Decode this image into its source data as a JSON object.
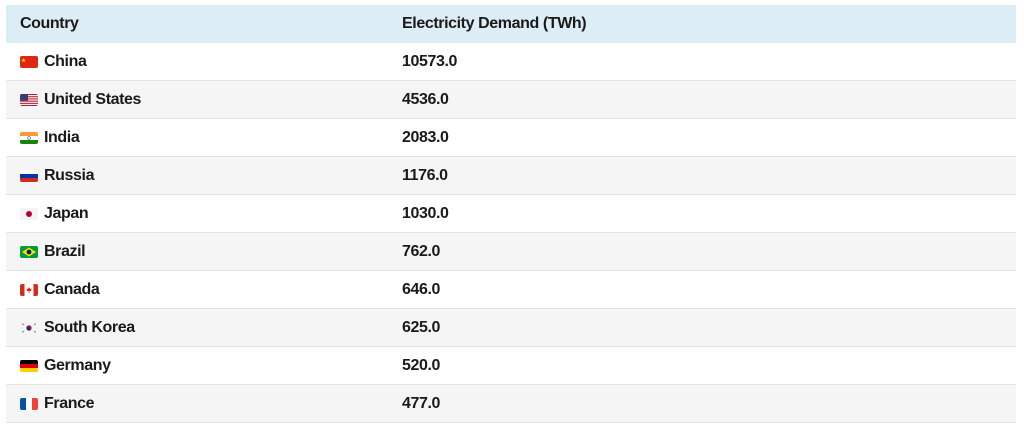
{
  "table": {
    "headers": {
      "country": "Country",
      "demand": "Electricity Demand (TWh)"
    },
    "rows": [
      {
        "country": "China",
        "demand": "10573.0",
        "flag_icon": "china-flag-icon"
      },
      {
        "country": "United States",
        "demand": "4536.0",
        "flag_icon": "united-states-flag-icon"
      },
      {
        "country": "India",
        "demand": "2083.0",
        "flag_icon": "india-flag-icon"
      },
      {
        "country": "Russia",
        "demand": "1176.0",
        "flag_icon": "russia-flag-icon"
      },
      {
        "country": "Japan",
        "demand": "1030.0",
        "flag_icon": "japan-flag-icon"
      },
      {
        "country": "Brazil",
        "demand": "762.0",
        "flag_icon": "brazil-flag-icon"
      },
      {
        "country": "Canada",
        "demand": "646.0",
        "flag_icon": "canada-flag-icon"
      },
      {
        "country": "South Korea",
        "demand": "625.0",
        "flag_icon": "south-korea-flag-icon"
      },
      {
        "country": "Germany",
        "demand": "520.0",
        "flag_icon": "germany-flag-icon"
      },
      {
        "country": "France",
        "demand": "477.0",
        "flag_icon": "france-flag-icon"
      }
    ]
  },
  "colors": {
    "header_bg": "#dcedf5",
    "alt_row_bg": "#f5f5f5",
    "row_border": "#e3e3e3",
    "text": "#1a1a1a"
  }
}
